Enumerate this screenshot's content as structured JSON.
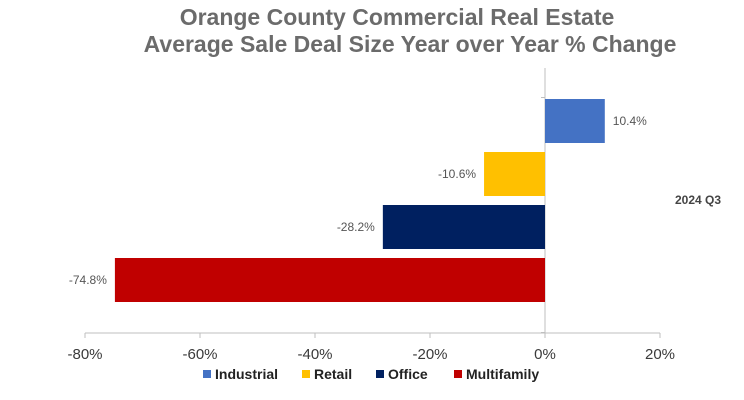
{
  "chart_data": {
    "type": "bar",
    "orientation": "horizontal",
    "title_lines": [
      "Orange County Commercial Real Estate",
      "Average Sale Deal Size Year over Year % Change"
    ],
    "series_label": "2024 Q3",
    "categories": [
      "Industrial",
      "Retail",
      "Office",
      "Multifamily"
    ],
    "values": [
      10.4,
      -10.6,
      -28.2,
      -74.8
    ],
    "data_labels": [
      "10.4%",
      "-10.6%",
      "-28.2%",
      "-74.8%"
    ],
    "colors": [
      "#4472c4",
      "#ffc000",
      "#002060",
      "#c00000"
    ],
    "xlim": [
      -80,
      20
    ],
    "x_ticks": [
      -80,
      -60,
      -40,
      -20,
      0,
      20
    ],
    "x_tick_labels": [
      "-80%",
      "-60%",
      "-40%",
      "-20%",
      "0%",
      "20%"
    ],
    "legend": {
      "position": "bottom",
      "entries": [
        {
          "label": "Industrial",
          "color": "#4472c4"
        },
        {
          "label": "Retail",
          "color": "#ffc000"
        },
        {
          "label": "Office",
          "color": "#002060"
        },
        {
          "label": "Multifamily",
          "color": "#c00000"
        }
      ]
    },
    "grid": false
  }
}
